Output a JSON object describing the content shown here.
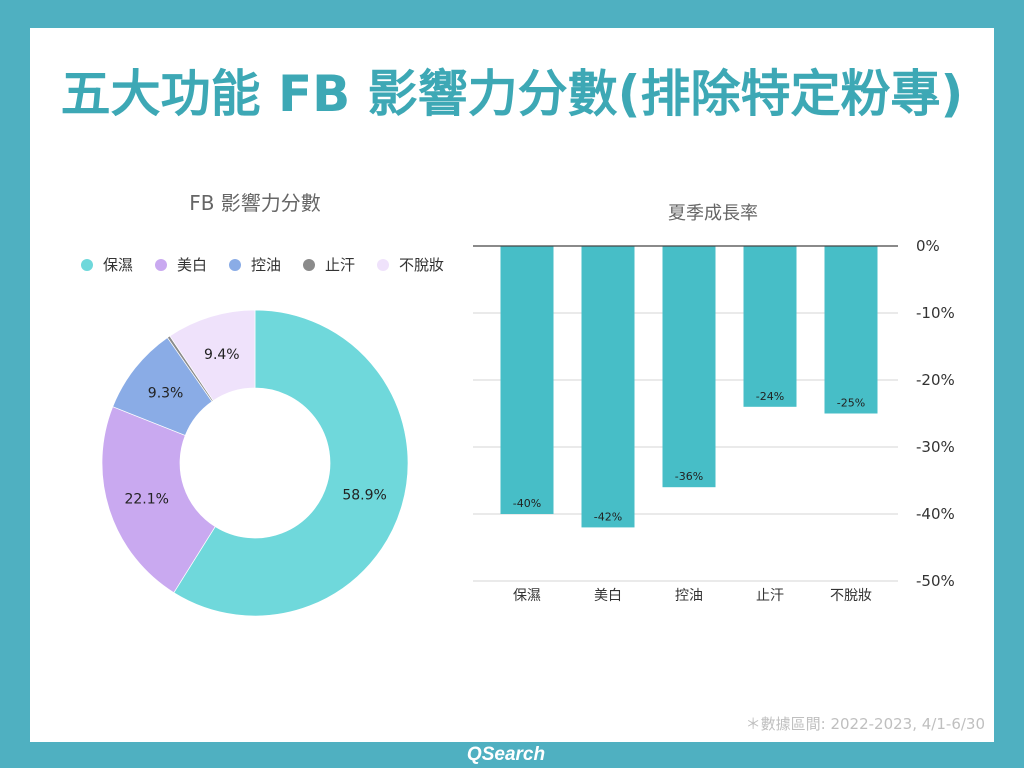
{
  "slide": {
    "title": "五大功能 FB 影響力分數(排除特定粉專)",
    "footnote": "＊數據區間: 2022-2023, 4/1-6/30",
    "brand": "QSearch"
  },
  "colors": {
    "frame": "#4fb0c1",
    "title": "#3da8b5",
    "chart_title": "#666666",
    "axis_text": "#333333",
    "footnote": "#bfbfbf",
    "brand": "#ffffff"
  },
  "chart_data": [
    {
      "type": "pie",
      "style": "donut",
      "title": "FB 影響力分數",
      "categories": [
        "保濕",
        "美白",
        "控油",
        "止汗",
        "不脫妝"
      ],
      "values": [
        58.9,
        22.1,
        9.3,
        0.3,
        9.4
      ],
      "data_labels": [
        "58.9%",
        "22.1%",
        "9.3%",
        null,
        "9.4%"
      ],
      "colors": [
        "#6fd8db",
        "#c9a9f0",
        "#8aace6",
        "#8b8b8b",
        "#efe2fb"
      ],
      "legend": "top"
    },
    {
      "type": "bar",
      "title": "夏季成長率",
      "categories": [
        "保濕",
        "美白",
        "控油",
        "止汗",
        "不脫妝"
      ],
      "values": [
        -40,
        -42,
        -36,
        -24,
        -25
      ],
      "data_labels": [
        "-40%",
        "-42%",
        "-36%",
        "-24%",
        "-25%"
      ],
      "ylim": [
        -50,
        0
      ],
      "yticks": [
        0,
        -10,
        -20,
        -30,
        -40,
        -50
      ],
      "ytick_labels": [
        "0%",
        "-10%",
        "-20%",
        "-30%",
        "-40%",
        "-50%"
      ],
      "yaxis_side": "right",
      "grid": true,
      "color": "#47bec7",
      "legend": "none"
    }
  ]
}
